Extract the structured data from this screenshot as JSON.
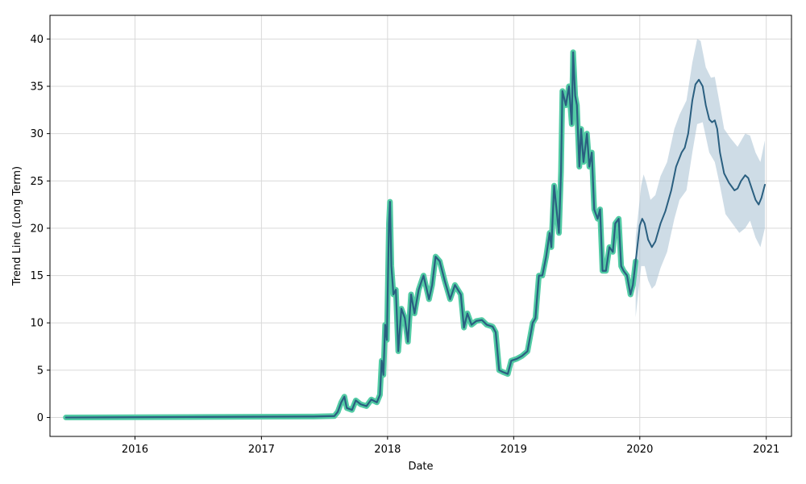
{
  "chart_data": {
    "type": "line",
    "xlabel": "Date",
    "ylabel": "Trend Line (Long Term)",
    "x_type": "date",
    "xlim": [
      "2015-04-30",
      "2021-03-15"
    ],
    "ylim": [
      -2,
      42.5
    ],
    "grid": true,
    "x_ticks": [
      {
        "value": "2016-01-01",
        "label": "2016"
      },
      {
        "value": "2017-01-01",
        "label": "2017"
      },
      {
        "value": "2018-01-01",
        "label": "2018"
      },
      {
        "value": "2019-01-01",
        "label": "2019"
      },
      {
        "value": "2020-01-01",
        "label": "2020"
      },
      {
        "value": "2021-01-01",
        "label": "2021"
      }
    ],
    "y_ticks": [
      0,
      5,
      10,
      15,
      20,
      25,
      30,
      35,
      40
    ],
    "colors": {
      "trend": "#2a5f80",
      "history_highlight": "#52cba4",
      "band": "#a6bfd1"
    },
    "series": [
      {
        "role": "historical",
        "points": [
          [
            "2015-06-15",
            0.0
          ],
          [
            "2016-06-01",
            0.05
          ],
          [
            "2017-06-01",
            0.1
          ],
          [
            "2017-07-31",
            0.15
          ],
          [
            "2017-08-10",
            0.6
          ],
          [
            "2017-08-20",
            1.6
          ],
          [
            "2017-08-29",
            2.2
          ],
          [
            "2017-09-05",
            1.0
          ],
          [
            "2017-09-20",
            0.8
          ],
          [
            "2017-10-01",
            1.8
          ],
          [
            "2017-10-15",
            1.4
          ],
          [
            "2017-11-01",
            1.2
          ],
          [
            "2017-11-15",
            1.9
          ],
          [
            "2017-12-01",
            1.6
          ],
          [
            "2017-12-10",
            2.4
          ],
          [
            "2017-12-15",
            6.0
          ],
          [
            "2017-12-20",
            4.5
          ],
          [
            "2017-12-25",
            9.8
          ],
          [
            "2017-12-30",
            8.2
          ],
          [
            "2018-01-05",
            20.5
          ],
          [
            "2018-01-08",
            22.8
          ],
          [
            "2018-01-12",
            16.0
          ],
          [
            "2018-01-18",
            13.0
          ],
          [
            "2018-01-25",
            13.5
          ],
          [
            "2018-02-01",
            7.0
          ],
          [
            "2018-02-10",
            11.5
          ],
          [
            "2018-02-20",
            10.5
          ],
          [
            "2018-03-01",
            8.0
          ],
          [
            "2018-03-10",
            13.0
          ],
          [
            "2018-03-20",
            11.0
          ],
          [
            "2018-04-01",
            13.5
          ],
          [
            "2018-04-15",
            15.0
          ],
          [
            "2018-05-01",
            12.5
          ],
          [
            "2018-05-10",
            14.0
          ],
          [
            "2018-05-20",
            17.0
          ],
          [
            "2018-06-01",
            16.5
          ],
          [
            "2018-06-15",
            14.5
          ],
          [
            "2018-07-01",
            12.5
          ],
          [
            "2018-07-15",
            14.0
          ],
          [
            "2018-08-01",
            13.0
          ],
          [
            "2018-08-10",
            9.5
          ],
          [
            "2018-08-20",
            11.0
          ],
          [
            "2018-09-01",
            9.8
          ],
          [
            "2018-09-15",
            10.2
          ],
          [
            "2018-10-01",
            10.3
          ],
          [
            "2018-10-15",
            9.8
          ],
          [
            "2018-11-01",
            9.6
          ],
          [
            "2018-11-10",
            9.0
          ],
          [
            "2018-11-20",
            5.0
          ],
          [
            "2018-12-01",
            4.8
          ],
          [
            "2018-12-15",
            4.6
          ],
          [
            "2018-12-25",
            6.0
          ],
          [
            "2019-01-10",
            6.2
          ],
          [
            "2019-01-25",
            6.5
          ],
          [
            "2019-02-10",
            7.0
          ],
          [
            "2019-02-25",
            10.0
          ],
          [
            "2019-03-05",
            10.5
          ],
          [
            "2019-03-15",
            15.0
          ],
          [
            "2019-03-25",
            15.0
          ],
          [
            "2019-04-05",
            17.0
          ],
          [
            "2019-04-15",
            19.5
          ],
          [
            "2019-04-20",
            18.0
          ],
          [
            "2019-04-28",
            24.5
          ],
          [
            "2019-05-05",
            22.0
          ],
          [
            "2019-05-12",
            19.5
          ],
          [
            "2019-05-18",
            26.0
          ],
          [
            "2019-05-22",
            34.5
          ],
          [
            "2019-06-01",
            33.0
          ],
          [
            "2019-06-10",
            35.0
          ],
          [
            "2019-06-18",
            31.0
          ],
          [
            "2019-06-22",
            38.6
          ],
          [
            "2019-06-28",
            34.0
          ],
          [
            "2019-07-03",
            33.0
          ],
          [
            "2019-07-10",
            26.5
          ],
          [
            "2019-07-15",
            30.5
          ],
          [
            "2019-07-22",
            27.0
          ],
          [
            "2019-08-01",
            30.0
          ],
          [
            "2019-08-08",
            26.5
          ],
          [
            "2019-08-15",
            28.0
          ],
          [
            "2019-08-22",
            22.0
          ],
          [
            "2019-09-01",
            21.0
          ],
          [
            "2019-09-08",
            22.0
          ],
          [
            "2019-09-15",
            15.5
          ],
          [
            "2019-09-25",
            15.5
          ],
          [
            "2019-10-05",
            18.0
          ],
          [
            "2019-10-15",
            17.5
          ],
          [
            "2019-10-22",
            20.5
          ],
          [
            "2019-11-01",
            21.0
          ],
          [
            "2019-11-08",
            16.0
          ],
          [
            "2019-11-15",
            15.5
          ],
          [
            "2019-11-25",
            15.0
          ],
          [
            "2019-12-05",
            13.0
          ],
          [
            "2019-12-12",
            14.0
          ],
          [
            "2019-12-20",
            16.5
          ]
        ]
      },
      {
        "role": "forecast",
        "points": [
          [
            "2019-12-20",
            16.5
          ],
          [
            "2020-01-01",
            20.3
          ],
          [
            "2020-01-08",
            21.0
          ],
          [
            "2020-01-15",
            20.5
          ],
          [
            "2020-01-25",
            18.8
          ],
          [
            "2020-02-05",
            18.0
          ],
          [
            "2020-02-15",
            18.6
          ],
          [
            "2020-03-01",
            20.5
          ],
          [
            "2020-03-15",
            21.8
          ],
          [
            "2020-04-01",
            24.0
          ],
          [
            "2020-04-15",
            26.5
          ],
          [
            "2020-05-01",
            28.0
          ],
          [
            "2020-05-10",
            28.5
          ],
          [
            "2020-05-20",
            30.0
          ],
          [
            "2020-06-01",
            33.5
          ],
          [
            "2020-06-10",
            35.2
          ],
          [
            "2020-06-20",
            35.7
          ],
          [
            "2020-07-01",
            35.0
          ],
          [
            "2020-07-10",
            33.0
          ],
          [
            "2020-07-20",
            31.5
          ],
          [
            "2020-07-28",
            31.2
          ],
          [
            "2020-08-05",
            31.4
          ],
          [
            "2020-08-12",
            30.5
          ],
          [
            "2020-08-20",
            28.0
          ],
          [
            "2020-09-01",
            25.8
          ],
          [
            "2020-09-15",
            24.8
          ],
          [
            "2020-10-01",
            24.0
          ],
          [
            "2020-10-10",
            24.2
          ],
          [
            "2020-10-20",
            25.0
          ],
          [
            "2020-11-01",
            25.6
          ],
          [
            "2020-11-10",
            25.3
          ],
          [
            "2020-11-20",
            24.2
          ],
          [
            "2020-12-01",
            23.0
          ],
          [
            "2020-12-10",
            22.5
          ],
          [
            "2020-12-18",
            23.2
          ],
          [
            "2020-12-28",
            24.6
          ]
        ]
      }
    ],
    "band": {
      "upper": [
        [
          "2019-12-20",
          19.0
        ],
        [
          "2020-01-05",
          24.5
        ],
        [
          "2020-01-12",
          25.7
        ],
        [
          "2020-01-20",
          24.8
        ],
        [
          "2020-02-01",
          23.0
        ],
        [
          "2020-02-15",
          23.5
        ],
        [
          "2020-03-01",
          25.5
        ],
        [
          "2020-03-20",
          27.0
        ],
        [
          "2020-04-10",
          30.5
        ],
        [
          "2020-04-25",
          32.0
        ],
        [
          "2020-05-15",
          33.5
        ],
        [
          "2020-06-01",
          37.5
        ],
        [
          "2020-06-15",
          40.0
        ],
        [
          "2020-06-25",
          39.8
        ],
        [
          "2020-07-10",
          37.0
        ],
        [
          "2020-07-25",
          35.9
        ],
        [
          "2020-08-05",
          36.0
        ],
        [
          "2020-08-20",
          33.0
        ],
        [
          "2020-09-01",
          30.5
        ],
        [
          "2020-09-20",
          29.5
        ],
        [
          "2020-10-10",
          28.6
        ],
        [
          "2020-11-01",
          30.0
        ],
        [
          "2020-11-15",
          29.8
        ],
        [
          "2020-12-01",
          28.0
        ],
        [
          "2020-12-15",
          27.0
        ],
        [
          "2020-12-28",
          29.3
        ]
      ],
      "lower": [
        [
          "2019-12-20",
          10.6
        ],
        [
          "2020-01-05",
          16.0
        ],
        [
          "2020-01-15",
          16.0
        ],
        [
          "2020-01-25",
          14.5
        ],
        [
          "2020-02-05",
          13.6
        ],
        [
          "2020-02-15",
          14.0
        ],
        [
          "2020-03-01",
          15.8
        ],
        [
          "2020-03-20",
          17.5
        ],
        [
          "2020-04-10",
          21.0
        ],
        [
          "2020-04-25",
          23.0
        ],
        [
          "2020-05-15",
          24.0
        ],
        [
          "2020-06-01",
          28.0
        ],
        [
          "2020-06-15",
          31.0
        ],
        [
          "2020-07-01",
          31.2
        ],
        [
          "2020-07-20",
          28.0
        ],
        [
          "2020-08-05",
          27.0
        ],
        [
          "2020-08-20",
          24.5
        ],
        [
          "2020-09-05",
          21.5
        ],
        [
          "2020-09-25",
          20.5
        ],
        [
          "2020-10-15",
          19.5
        ],
        [
          "2020-11-01",
          20.0
        ],
        [
          "2020-11-15",
          20.8
        ],
        [
          "2020-12-01",
          19.0
        ],
        [
          "2020-12-15",
          18.0
        ],
        [
          "2020-12-28",
          20.0
        ]
      ]
    }
  }
}
